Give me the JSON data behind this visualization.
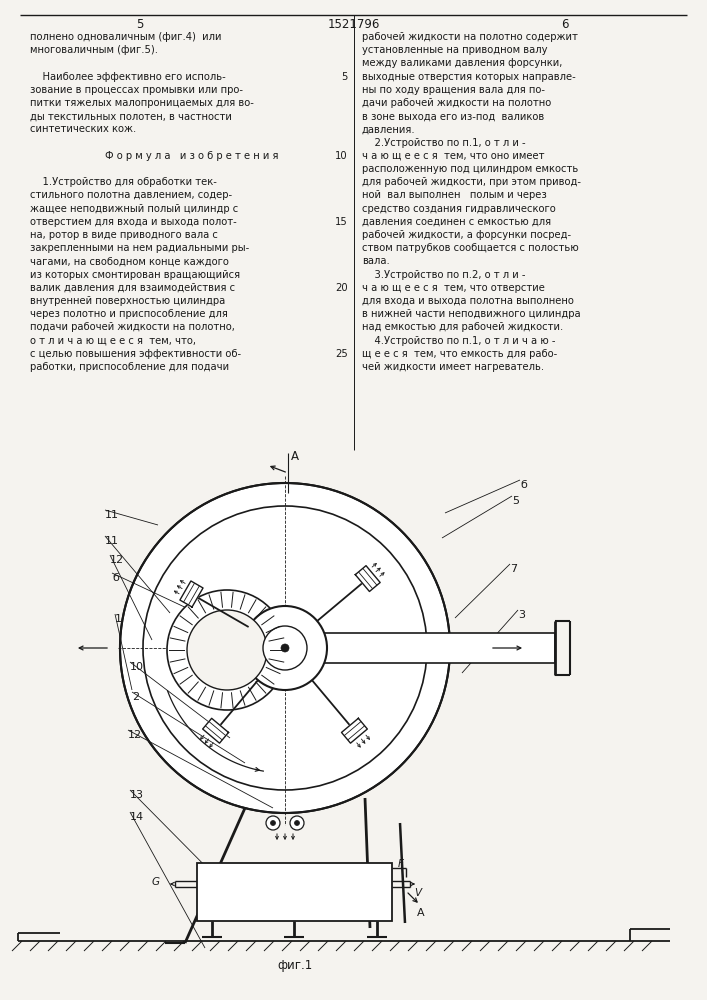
{
  "page_bg": "#f5f3ef",
  "line_color": "#1a1a1a",
  "text_color": "#1a1a1a",
  "title_number": "1521796",
  "page_left": "5",
  "page_right": "6",
  "fig_caption": "фиг.1",
  "top_left_text": [
    "полнено одноваличным (фиг.4)  или",
    "многоваличным (фиг.5).",
    "",
    "    Наиболее эффективно его исполь-",
    "зование в процессах промывки или про-",
    "питки тяжелых малопроницаемых для во-",
    "ды текстильных полотен, в частности",
    "синтетических кож.",
    "",
    "Ф о р м у л а   и з о б р е т е н и я",
    "",
    "    1.Устройство для обработки тек-",
    "стильного полотна давлением, содер-",
    "жащее неподвижный полый цилиндр с",
    "отверстием для входа и выхода полот-",
    "на, ротор в виде приводного вала с",
    "закрепленными на нем радиальными ры-",
    "чагами, на свободном конце каждого",
    "из которых смонтирован вращающийся",
    "валик давления для взаимодействия с",
    "внутренней поверхностью цилиндра",
    "через полотно и приспособление для",
    "подачи рабочей жидкости на полотно,",
    "о т л и ч а ю щ е е с я  тем, что,",
    "с целью повышения эффективности об-",
    "работки, приспособление для подачи"
  ],
  "top_right_text": [
    "рабочей жидкости на полотно содержит",
    "установленные на приводном валу",
    "между валиками давления форсунки,",
    "выходные отверстия которых направле-",
    "ны по ходу вращения вала для по-",
    "дачи рабочей жидкости на полотно",
    "в зоне выхода его из-под  валиков",
    "давления.",
    "    2.Устройство по п.1, о т л и -",
    "ч а ю щ е е с я  тем, что оно имеет",
    "расположенную под цилиндром емкость",
    "для рабочей жидкости, при этом привод-",
    "ной  вал выполнен   полым и через",
    "средство создания гидравлического",
    "давления соединен с емкостью для",
    "рабочей жидкости, а форсунки посред-",
    "ством патрубков сообщается с полостью",
    "вала.",
    "    3.Устройство по п.2, о т л и -",
    "ч а ю щ е е с я  тем, что отверстие",
    "для входа и выхода полотна выполнено",
    "в нижней части неподвижного цилиндра",
    "над емкостью для рабочей жидкости.",
    "    4.Устройство по п.1, о т л и ч а ю -",
    "щ е е с я  тем, что емкость для рабо-",
    "чей жидкости имеет нагреватель."
  ]
}
